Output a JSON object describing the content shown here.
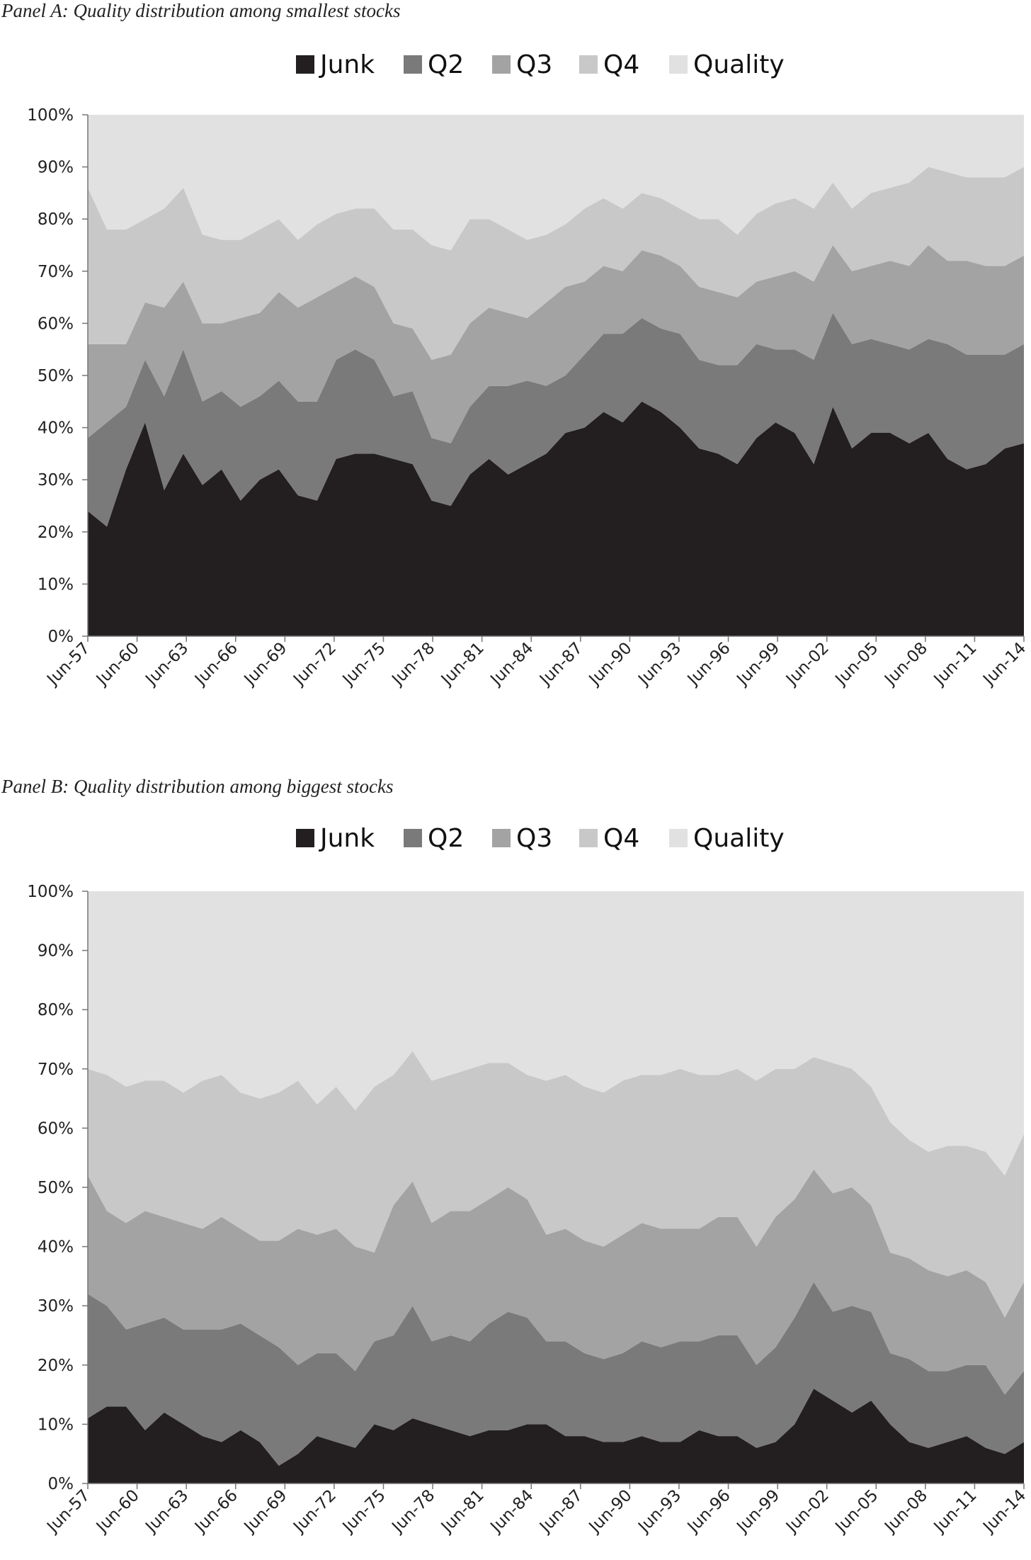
{
  "chart_data": [
    {
      "type": "area",
      "stacked": true,
      "title": "Panel A: Quality distribution among smallest stocks",
      "xlabel": "",
      "ylabel": "",
      "ylim": [
        0,
        100
      ],
      "yticks": [
        "0%",
        "10%",
        "20%",
        "30%",
        "40%",
        "50%",
        "60%",
        "70%",
        "80%",
        "90%",
        "100%"
      ],
      "x_tick_labels": [
        "Jun-57",
        "Jun-60",
        "Jun-63",
        "Jun-66",
        "Jun-69",
        "Jun-72",
        "Jun-75",
        "Jun-78",
        "Jun-81",
        "Jun-84",
        "Jun-87",
        "Jun-90",
        "Jun-93",
        "Jun-96",
        "Jun-99",
        "Jun-02",
        "Jun-05",
        "Jun-08",
        "Jun-11",
        "Jun-14"
      ],
      "legend_position": "top-center",
      "series": [
        {
          "name": "Junk",
          "color": "#231f20",
          "values": [
            24,
            21,
            32,
            41,
            28,
            35,
            29,
            32,
            26,
            30,
            32,
            27,
            26,
            34,
            35,
            35,
            34,
            33,
            26,
            25,
            31,
            34,
            31,
            33,
            35,
            39,
            40,
            43,
            41,
            45,
            43,
            40,
            36,
            35,
            33,
            38,
            41,
            39,
            33,
            44,
            36,
            39,
            39,
            37,
            39,
            34,
            32,
            33,
            36,
            37
          ]
        },
        {
          "name": "Q2",
          "color": "#7a7a7a",
          "values": [
            14,
            20,
            12,
            12,
            18,
            20,
            16,
            15,
            18,
            16,
            17,
            18,
            19,
            19,
            20,
            18,
            12,
            14,
            12,
            12,
            13,
            14,
            17,
            16,
            13,
            11,
            14,
            15,
            17,
            16,
            16,
            18,
            17,
            17,
            19,
            18,
            14,
            16,
            20,
            18,
            20,
            18,
            17,
            18,
            18,
            22,
            22,
            21,
            18,
            19
          ]
        },
        {
          "name": "Q3",
          "color": "#a3a3a3",
          "values": [
            18,
            15,
            12,
            11,
            17,
            13,
            15,
            13,
            17,
            16,
            17,
            18,
            20,
            14,
            14,
            14,
            14,
            12,
            15,
            17,
            16,
            15,
            14,
            12,
            16,
            17,
            14,
            13,
            12,
            13,
            14,
            13,
            14,
            14,
            13,
            12,
            14,
            15,
            15,
            13,
            14,
            14,
            16,
            16,
            18,
            16,
            18,
            17,
            17,
            17
          ]
        },
        {
          "name": "Q4",
          "color": "#c8c8c8",
          "values": [
            30,
            22,
            22,
            16,
            19,
            18,
            17,
            16,
            15,
            16,
            14,
            13,
            14,
            14,
            13,
            15,
            18,
            19,
            22,
            20,
            20,
            17,
            16,
            15,
            13,
            12,
            14,
            13,
            12,
            11,
            11,
            11,
            13,
            14,
            12,
            13,
            14,
            14,
            14,
            12,
            12,
            14,
            14,
            16,
            15,
            17,
            16,
            17,
            17,
            17
          ]
        },
        {
          "name": "Quality",
          "color": "#e1e1e2",
          "values": [
            14,
            22,
            22,
            20,
            18,
            14,
            23,
            24,
            24,
            22,
            20,
            24,
            21,
            19,
            18,
            18,
            22,
            22,
            25,
            26,
            20,
            20,
            22,
            24,
            23,
            21,
            18,
            16,
            18,
            15,
            16,
            18,
            20,
            20,
            23,
            19,
            17,
            16,
            18,
            13,
            18,
            15,
            14,
            13,
            10,
            11,
            12,
            12,
            12,
            10
          ]
        }
      ]
    },
    {
      "type": "area",
      "stacked": true,
      "title": "Panel B: Quality distribution among biggest stocks",
      "xlabel": "",
      "ylabel": "",
      "ylim": [
        0,
        100
      ],
      "yticks": [
        "0%",
        "10%",
        "20%",
        "30%",
        "40%",
        "50%",
        "60%",
        "70%",
        "80%",
        "90%",
        "100%"
      ],
      "x_tick_labels": [
        "Jun-57",
        "Jun-60",
        "Jun-63",
        "Jun-66",
        "Jun-69",
        "Jun-72",
        "Jun-75",
        "Jun-78",
        "Jun-81",
        "Jun-84",
        "Jun-87",
        "Jun-90",
        "Jun-93",
        "Jun-96",
        "Jun-99",
        "Jun-02",
        "Jun-05",
        "Jun-08",
        "Jun-11",
        "Jun-14"
      ],
      "legend_position": "top-center",
      "series": [
        {
          "name": "Junk",
          "color": "#231f20",
          "values": [
            11,
            13,
            13,
            9,
            12,
            10,
            8,
            7,
            9,
            7,
            3,
            5,
            8,
            7,
            6,
            10,
            9,
            11,
            10,
            9,
            8,
            9,
            9,
            10,
            10,
            8,
            8,
            7,
            7,
            8,
            7,
            7,
            9,
            8,
            8,
            6,
            7,
            10,
            16,
            14,
            12,
            14,
            10,
            7,
            6,
            7,
            8,
            6,
            5,
            7
          ]
        },
        {
          "name": "Q2",
          "color": "#7a7a7a",
          "values": [
            21,
            17,
            13,
            18,
            16,
            16,
            18,
            19,
            18,
            18,
            20,
            15,
            14,
            15,
            13,
            14,
            16,
            19,
            14,
            16,
            16,
            18,
            20,
            18,
            14,
            16,
            14,
            14,
            15,
            16,
            16,
            17,
            15,
            17,
            17,
            14,
            16,
            18,
            18,
            15,
            18,
            15,
            12,
            14,
            13,
            12,
            12,
            14,
            10,
            12
          ]
        },
        {
          "name": "Q3",
          "color": "#a3a3a3",
          "values": [
            20,
            16,
            18,
            19,
            17,
            18,
            17,
            19,
            16,
            16,
            18,
            23,
            20,
            21,
            21,
            15,
            22,
            21,
            20,
            21,
            22,
            21,
            21,
            20,
            18,
            19,
            19,
            19,
            20,
            20,
            20,
            19,
            19,
            20,
            20,
            20,
            22,
            20,
            19,
            20,
            20,
            18,
            17,
            17,
            17,
            16,
            16,
            14,
            13,
            15
          ]
        },
        {
          "name": "Q4",
          "color": "#c8c8c8",
          "values": [
            18,
            23,
            23,
            22,
            23,
            22,
            25,
            24,
            23,
            24,
            25,
            25,
            22,
            24,
            23,
            28,
            22,
            22,
            24,
            23,
            24,
            23,
            21,
            21,
            26,
            26,
            26,
            26,
            26,
            25,
            26,
            27,
            26,
            24,
            25,
            28,
            25,
            22,
            19,
            22,
            20,
            20,
            22,
            20,
            20,
            22,
            21,
            22,
            24,
            25
          ]
        },
        {
          "name": "Quality",
          "color": "#e1e1e2",
          "values": [
            30,
            31,
            33,
            32,
            32,
            34,
            32,
            31,
            34,
            35,
            34,
            32,
            36,
            33,
            37,
            33,
            31,
            27,
            32,
            31,
            30,
            29,
            29,
            31,
            32,
            31,
            33,
            34,
            32,
            31,
            31,
            30,
            31,
            31,
            30,
            32,
            30,
            30,
            28,
            29,
            30,
            33,
            39,
            42,
            44,
            43,
            43,
            44,
            48,
            41
          ]
        }
      ]
    }
  ]
}
